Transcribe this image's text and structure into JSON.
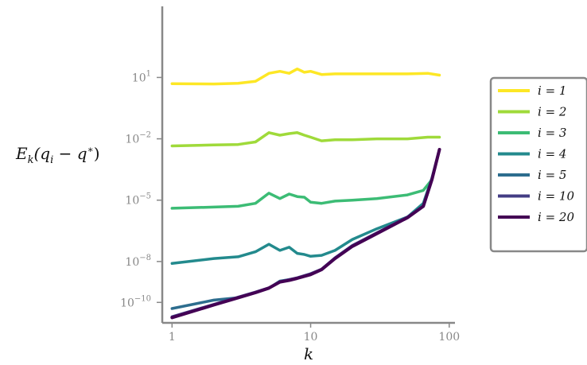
{
  "chart_data": {
    "type": "line",
    "title": "",
    "xlabel": "k",
    "ylabel": "E_k(q_i − q*)",
    "xscale": "log",
    "yscale": "log",
    "xlim": [
      0.85,
      110
    ],
    "ylim": [
      1e-11,
      30000
    ],
    "grid": false,
    "legend_position": "right",
    "x_ticks": [
      {
        "value": 1,
        "label": "1"
      },
      {
        "value": 10,
        "label": "10"
      },
      {
        "value": 100,
        "label": "100"
      }
    ],
    "y_ticks": [
      {
        "value": 10,
        "base": "10",
        "exp": "1"
      },
      {
        "value": 0.01,
        "base": "10",
        "exp": "−2"
      },
      {
        "value": 1e-05,
        "base": "10",
        "exp": "−5"
      },
      {
        "value": 1e-08,
        "base": "10",
        "exp": "−8"
      },
      {
        "value": 1e-10,
        "base": "10",
        "exp": "−10"
      }
    ],
    "series": [
      {
        "name": "i = 1",
        "color": "#fde725",
        "points": [
          [
            1,
            5
          ],
          [
            2,
            4.8
          ],
          [
            3,
            5.2
          ],
          [
            4,
            6.5
          ],
          [
            5,
            16
          ],
          [
            6,
            20
          ],
          [
            7,
            16
          ],
          [
            8,
            26
          ],
          [
            9,
            18
          ],
          [
            10,
            20
          ],
          [
            12,
            14
          ],
          [
            15,
            15
          ],
          [
            20,
            15
          ],
          [
            30,
            15
          ],
          [
            50,
            15
          ],
          [
            70,
            16
          ],
          [
            85,
            13
          ]
        ]
      },
      {
        "name": "i = 2",
        "color": "#9fda3a",
        "points": [
          [
            1,
            0.0045
          ],
          [
            2,
            0.005
          ],
          [
            3,
            0.0053
          ],
          [
            4,
            0.007
          ],
          [
            5,
            0.02
          ],
          [
            6,
            0.015
          ],
          [
            7,
            0.018
          ],
          [
            8,
            0.02
          ],
          [
            9,
            0.015
          ],
          [
            10,
            0.012
          ],
          [
            12,
            0.008
          ],
          [
            15,
            0.009
          ],
          [
            20,
            0.009
          ],
          [
            30,
            0.01
          ],
          [
            50,
            0.01
          ],
          [
            70,
            0.012
          ],
          [
            85,
            0.012
          ]
        ]
      },
      {
        "name": "i = 3",
        "color": "#3cbc75",
        "points": [
          [
            1,
            4e-06
          ],
          [
            2,
            4.6e-06
          ],
          [
            3,
            5e-06
          ],
          [
            4,
            7e-06
          ],
          [
            5,
            2.2e-05
          ],
          [
            6,
            1.2e-05
          ],
          [
            7,
            2e-05
          ],
          [
            8,
            1.5e-05
          ],
          [
            9,
            1.4e-05
          ],
          [
            10,
            8e-06
          ],
          [
            12,
            7e-06
          ],
          [
            15,
            9e-06
          ],
          [
            20,
            1e-05
          ],
          [
            30,
            1.2e-05
          ],
          [
            50,
            1.8e-05
          ],
          [
            65,
            3e-05
          ],
          [
            75,
            0.0001
          ],
          [
            85,
            0.003
          ]
        ]
      },
      {
        "name": "i = 4",
        "color": "#238a8d",
        "points": [
          [
            1,
            8e-09
          ],
          [
            2,
            1.4e-08
          ],
          [
            3,
            1.7e-08
          ],
          [
            4,
            3e-08
          ],
          [
            5,
            7e-08
          ],
          [
            6,
            3.5e-08
          ],
          [
            7,
            5e-08
          ],
          [
            8,
            2.5e-08
          ],
          [
            9,
            2.2e-08
          ],
          [
            10,
            1.8e-08
          ],
          [
            12,
            2e-08
          ],
          [
            15,
            3.5e-08
          ],
          [
            20,
            1.2e-07
          ],
          [
            30,
            4e-07
          ],
          [
            50,
            1.5e-06
          ],
          [
            65,
            7e-06
          ],
          [
            75,
            0.00012
          ],
          [
            85,
            0.003
          ]
        ]
      },
      {
        "name": "i = 5",
        "color": "#2d6d8e",
        "points": [
          [
            1,
            5e-11
          ],
          [
            2,
            1.3e-10
          ],
          [
            3,
            1.7e-10
          ],
          [
            4,
            3e-10
          ],
          [
            5,
            5e-10
          ],
          [
            6,
            1.1e-09
          ],
          [
            7,
            1.3e-09
          ],
          [
            8,
            1.5e-09
          ],
          [
            10,
            2.5e-09
          ],
          [
            12,
            4e-09
          ],
          [
            15,
            1.5e-08
          ],
          [
            20,
            6e-08
          ],
          [
            30,
            2.5e-07
          ],
          [
            50,
            1.5e-06
          ],
          [
            65,
            5e-06
          ],
          [
            75,
            0.0001
          ],
          [
            85,
            0.003
          ]
        ]
      },
      {
        "name": "i = 10",
        "color": "#433d84",
        "points": [
          [
            1,
            2e-11
          ],
          [
            2,
            8e-11
          ],
          [
            3,
            1.8e-10
          ],
          [
            4,
            3.2e-10
          ],
          [
            5,
            5.2e-10
          ],
          [
            6,
            1e-09
          ],
          [
            7,
            1.3e-09
          ],
          [
            8,
            1.6e-09
          ],
          [
            10,
            2.5e-09
          ],
          [
            12,
            4.2e-09
          ],
          [
            15,
            1.5e-08
          ],
          [
            20,
            6e-08
          ],
          [
            30,
            2.5e-07
          ],
          [
            50,
            1.5e-06
          ],
          [
            65,
            5e-06
          ],
          [
            75,
            0.0001
          ],
          [
            85,
            0.003
          ]
        ]
      },
      {
        "name": "i = 20",
        "color": "#440154",
        "points": [
          [
            1,
            1.8e-11
          ],
          [
            2,
            7.5e-11
          ],
          [
            3,
            1.7e-10
          ],
          [
            4,
            3e-10
          ],
          [
            5,
            5e-10
          ],
          [
            6,
            1e-09
          ],
          [
            7,
            1.2e-09
          ],
          [
            8,
            1.5e-09
          ],
          [
            10,
            2.3e-09
          ],
          [
            12,
            4e-09
          ],
          [
            15,
            1.4e-08
          ],
          [
            20,
            5.5e-08
          ],
          [
            30,
            2.3e-07
          ],
          [
            50,
            1.4e-06
          ],
          [
            65,
            5e-06
          ],
          [
            75,
            0.0001
          ],
          [
            85,
            0.003
          ]
        ]
      }
    ]
  }
}
